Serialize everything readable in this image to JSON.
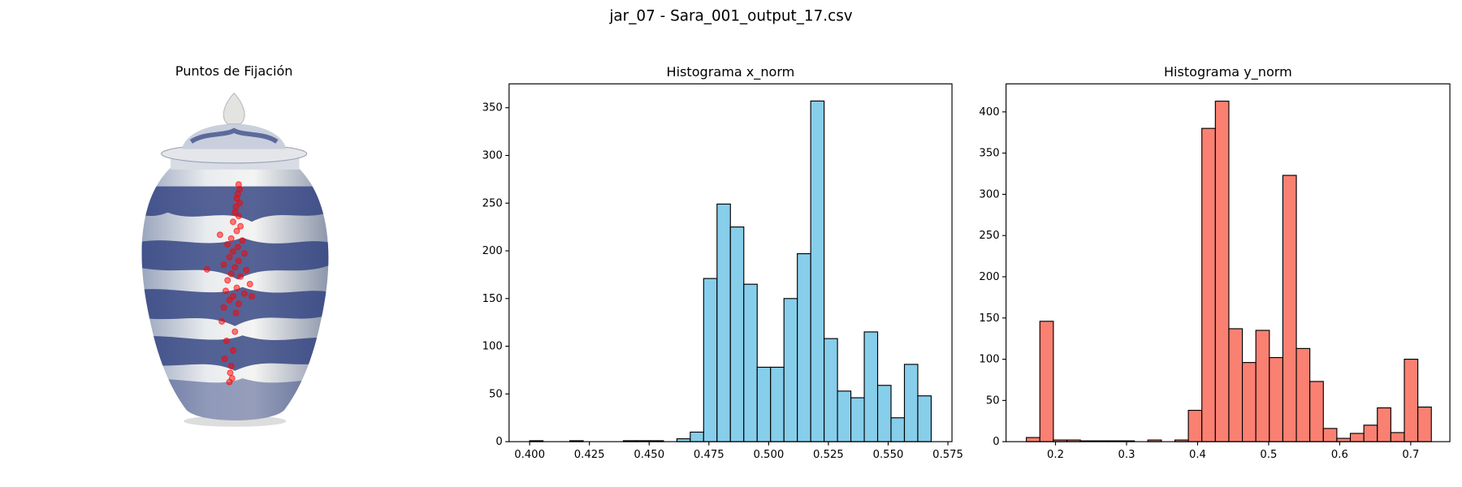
{
  "title": "jar_07 - Sara_001_output_17.csv",
  "chart_data": [
    {
      "type": "scatter",
      "title": "Puntos de Fijación",
      "color": "#ff0000",
      "x": [
        0.527,
        0.532,
        0.523,
        0.518,
        0.532,
        0.514,
        0.509,
        0.527,
        0.5,
        0.536,
        0.518,
        0.436,
        0.491,
        0.545,
        0.473,
        0.523,
        0.5,
        0.555,
        0.482,
        0.527,
        0.455,
        0.509,
        0.564,
        0.373,
        0.491,
        0.536,
        0.473,
        0.582,
        0.518,
        0.464,
        0.555,
        0.5,
        0.591,
        0.482,
        0.527,
        0.455,
        0.514,
        0.445,
        0.509,
        0.468,
        0.5,
        0.459,
        0.491,
        0.486,
        0.495,
        0.482
      ],
      "y": [
        0.282,
        0.296,
        0.31,
        0.323,
        0.337,
        0.348,
        0.364,
        0.375,
        0.392,
        0.405,
        0.419,
        0.43,
        0.441,
        0.447,
        0.458,
        0.466,
        0.479,
        0.485,
        0.496,
        0.507,
        0.518,
        0.526,
        0.534,
        0.532,
        0.545,
        0.553,
        0.564,
        0.575,
        0.586,
        0.595,
        0.603,
        0.611,
        0.611,
        0.622,
        0.633,
        0.644,
        0.66,
        0.685,
        0.715,
        0.742,
        0.77,
        0.795,
        0.816,
        0.836,
        0.852,
        0.863
      ]
    },
    {
      "type": "histogram",
      "title": "Histograma x_norm",
      "color": "#87ceeb",
      "bins": [
        0.4,
        0.4056,
        0.4112,
        0.4168,
        0.4224,
        0.428,
        0.4336,
        0.4392,
        0.4448,
        0.4504,
        0.456,
        0.4616,
        0.4672,
        0.4728,
        0.4784,
        0.484,
        0.4896,
        0.4952,
        0.5008,
        0.5064,
        0.512,
        0.5176,
        0.5232,
        0.5288,
        0.5344,
        0.54,
        0.5456,
        0.5512,
        0.5568,
        0.5624,
        0.568
      ],
      "counts": [
        1,
        0,
        0,
        1,
        0,
        0,
        0,
        1,
        1,
        1,
        0,
        3,
        10,
        171,
        249,
        225,
        165,
        78,
        78,
        150,
        197,
        357,
        108,
        53,
        46,
        115,
        59,
        25,
        81,
        48
      ],
      "xlim": [
        0.3914,
        0.5767
      ],
      "ylim": [
        0,
        375
      ],
      "xticks": [
        {
          "value": 0.4,
          "label": "0.400"
        },
        0.425,
        {
          "value": 0.45,
          "label": "0.450"
        },
        0.475,
        {
          "value": 0.5,
          "label": "0.500"
        },
        0.525,
        {
          "value": 0.55,
          "label": "0.550"
        },
        0.575
      ],
      "yticks": [
        0,
        50,
        100,
        150,
        200,
        250,
        300,
        350
      ]
    },
    {
      "type": "histogram",
      "title": "Histograma y_norm",
      "color": "#fa8072",
      "bins": [
        0.159,
        0.178,
        0.197,
        0.216,
        0.235,
        0.254,
        0.273,
        0.292,
        0.311,
        0.33,
        0.349,
        0.368,
        0.387,
        0.406,
        0.425,
        0.444,
        0.463,
        0.482,
        0.501,
        0.52,
        0.539,
        0.558,
        0.577,
        0.596,
        0.615,
        0.634,
        0.653,
        0.672,
        0.691,
        0.71,
        0.729
      ],
      "counts": [
        5,
        146,
        2,
        2,
        1,
        1,
        1,
        1,
        0,
        2,
        0,
        2,
        38,
        380,
        413,
        137,
        96,
        135,
        102,
        323,
        113,
        73,
        16,
        4,
        10,
        20,
        41,
        11,
        100,
        42
      ],
      "xlim": [
        0.1304,
        0.7551
      ],
      "ylim": [
        0,
        434
      ],
      "xticks": [
        0.2,
        0.3,
        0.4,
        0.5,
        0.6,
        0.7
      ],
      "yticks": [
        0,
        50,
        100,
        150,
        200,
        250,
        300,
        350,
        400
      ]
    }
  ]
}
